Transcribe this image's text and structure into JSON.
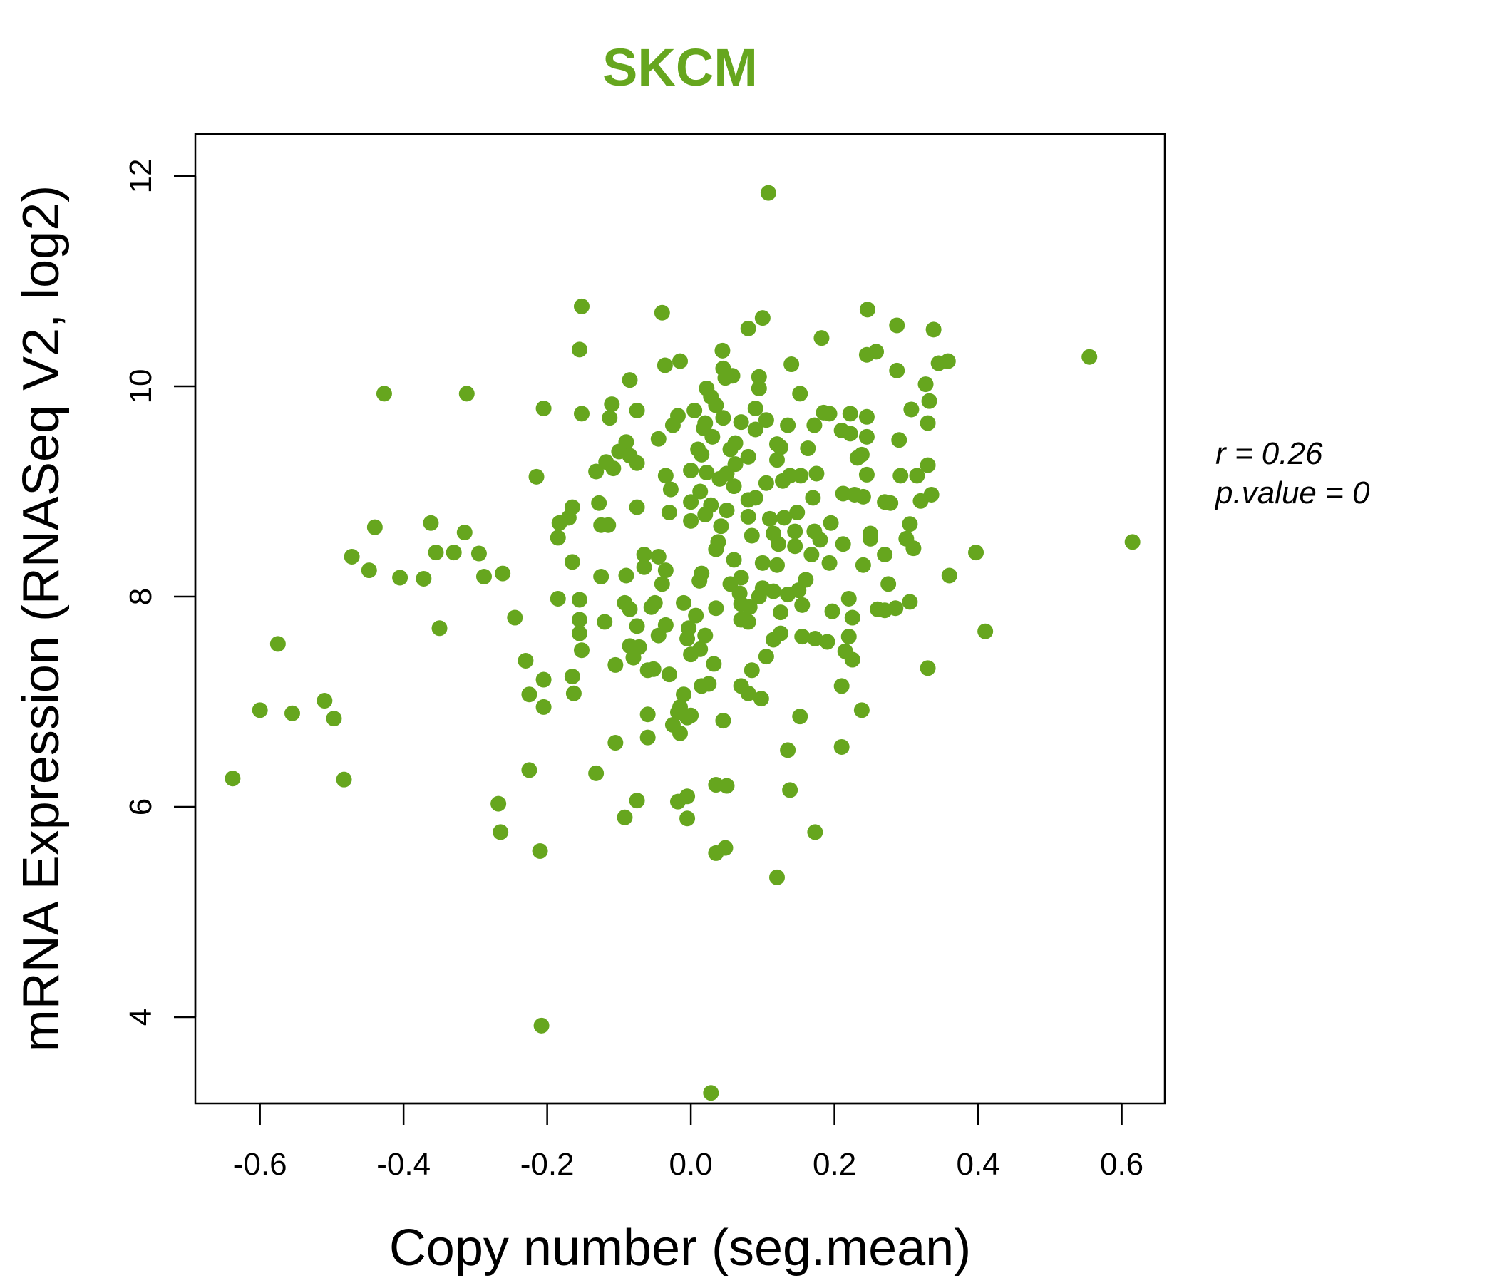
{
  "chart_data": {
    "type": "scatter",
    "title": "SKCM",
    "xlabel": "Copy number (seg.mean)",
    "ylabel": "mRNA Expression (RNASeq V2, log2)",
    "xlim": [
      -0.69,
      0.66
    ],
    "ylim": [
      3.18,
      12.4
    ],
    "x_ticks": [
      -0.6,
      -0.4,
      -0.2,
      0.0,
      0.2,
      0.4,
      0.6
    ],
    "x_tick_labels": [
      "-0.6",
      "-0.4",
      "-0.2",
      "0.0",
      "0.2",
      "0.4",
      "0.6"
    ],
    "y_ticks": [
      4,
      6,
      8,
      10,
      12
    ],
    "y_tick_labels": [
      "4",
      "6",
      "8",
      "10",
      "12"
    ],
    "grid": false,
    "color": "#66a61e",
    "stats": {
      "r_text": "r = 0.26",
      "p_text": "p.value = 0"
    },
    "points": [
      [
        0.108,
        11.84
      ],
      [
        -0.152,
        10.76
      ],
      [
        -0.04,
        10.7
      ],
      [
        0.246,
        10.73
      ],
      [
        0.1,
        10.65
      ],
      [
        0.08,
        10.55
      ],
      [
        0.287,
        10.58
      ],
      [
        0.338,
        10.54
      ],
      [
        0.182,
        10.46
      ],
      [
        -0.155,
        10.35
      ],
      [
        0.044,
        10.34
      ],
      [
        0.258,
        10.33
      ],
      [
        0.245,
        10.3
      ],
      [
        0.555,
        10.28
      ],
      [
        0.358,
        10.24
      ],
      [
        0.345,
        10.22
      ],
      [
        -0.015,
        10.24
      ],
      [
        -0.036,
        10.2
      ],
      [
        0.14,
        10.21
      ],
      [
        0.045,
        10.17
      ],
      [
        0.287,
        10.15
      ],
      [
        0.048,
        10.08
      ],
      [
        0.058,
        10.1
      ],
      [
        0.095,
        10.09
      ],
      [
        -0.085,
        10.06
      ],
      [
        0.327,
        10.02
      ],
      [
        0.022,
        9.98
      ],
      [
        0.095,
        9.98
      ],
      [
        0.152,
        9.93
      ],
      [
        -0.427,
        9.93
      ],
      [
        -0.312,
        9.93
      ],
      [
        0.028,
        9.9
      ],
      [
        0.332,
        9.86
      ],
      [
        -0.11,
        9.83
      ],
      [
        0.035,
        9.82
      ],
      [
        0.09,
        9.79
      ],
      [
        0.005,
        9.77
      ],
      [
        -0.205,
        9.79
      ],
      [
        -0.152,
        9.74
      ],
      [
        -0.075,
        9.77
      ],
      [
        0.185,
        9.75
      ],
      [
        0.193,
        9.74
      ],
      [
        0.307,
        9.78
      ],
      [
        0.222,
        9.74
      ],
      [
        0.245,
        9.71
      ],
      [
        -0.113,
        9.7
      ],
      [
        0.045,
        9.7
      ],
      [
        -0.018,
        9.72
      ],
      [
        0.105,
        9.68
      ],
      [
        0.07,
        9.66
      ],
      [
        0.02,
        9.65
      ],
      [
        0.33,
        9.65
      ],
      [
        -0.025,
        9.63
      ],
      [
        0.135,
        9.63
      ],
      [
        0.172,
        9.63
      ],
      [
        0.018,
        9.6
      ],
      [
        0.09,
        9.59
      ],
      [
        0.21,
        9.58
      ],
      [
        0.222,
        9.55
      ],
      [
        0.245,
        9.52
      ],
      [
        -0.045,
        9.5
      ],
      [
        0.03,
        9.52
      ],
      [
        -0.09,
        9.47
      ],
      [
        0.062,
        9.46
      ],
      [
        0.12,
        9.45
      ],
      [
        0.125,
        9.42
      ],
      [
        0.163,
        9.41
      ],
      [
        0.01,
        9.4
      ],
      [
        0.055,
        9.4
      ],
      [
        0.29,
        9.49
      ],
      [
        -0.1,
        9.38
      ],
      [
        -0.085,
        9.34
      ],
      [
        0.238,
        9.35
      ],
      [
        0.232,
        9.32
      ],
      [
        0.015,
        9.35
      ],
      [
        0.08,
        9.33
      ],
      [
        0.12,
        9.3
      ],
      [
        -0.118,
        9.28
      ],
      [
        -0.075,
        9.27
      ],
      [
        0.062,
        9.26
      ],
      [
        0.33,
        9.25
      ],
      [
        -0.108,
        9.22
      ],
      [
        0.0,
        9.2
      ],
      [
        -0.132,
        9.19
      ],
      [
        0.022,
        9.18
      ],
      [
        0.05,
        9.17
      ],
      [
        0.175,
        9.17
      ],
      [
        0.138,
        9.15
      ],
      [
        0.153,
        9.15
      ],
      [
        0.245,
        9.16
      ],
      [
        0.292,
        9.15
      ],
      [
        0.315,
        9.15
      ],
      [
        -0.215,
        9.14
      ],
      [
        -0.035,
        9.15
      ],
      [
        0.04,
        9.12
      ],
      [
        0.128,
        9.1
      ],
      [
        0.105,
        9.08
      ],
      [
        0.06,
        9.05
      ],
      [
        -0.028,
        9.02
      ],
      [
        0.013,
        9.0
      ],
      [
        0.212,
        8.98
      ],
      [
        0.228,
        8.97
      ],
      [
        0.24,
        8.95
      ],
      [
        0.335,
        8.97
      ],
      [
        0.09,
        8.94
      ],
      [
        0.17,
        8.94
      ],
      [
        0.08,
        8.92
      ],
      [
        0.32,
        8.91
      ],
      [
        0.0,
        8.9
      ],
      [
        0.27,
        8.9
      ],
      [
        0.278,
        8.89
      ],
      [
        -0.128,
        8.89
      ],
      [
        0.028,
        8.87
      ],
      [
        -0.165,
        8.85
      ],
      [
        -0.075,
        8.85
      ],
      [
        0.05,
        8.82
      ],
      [
        0.148,
        8.8
      ],
      [
        -0.03,
        8.8
      ],
      [
        0.02,
        8.78
      ],
      [
        0.08,
        8.76
      ],
      [
        -0.17,
        8.75
      ],
      [
        0.13,
        8.75
      ],
      [
        0.11,
        8.74
      ],
      [
        0.0,
        8.72
      ],
      [
        -0.183,
        8.7
      ],
      [
        0.195,
        8.7
      ],
      [
        -0.115,
        8.68
      ],
      [
        -0.125,
        8.68
      ],
      [
        0.305,
        8.69
      ],
      [
        0.042,
        8.67
      ],
      [
        -0.44,
        8.66
      ],
      [
        -0.362,
        8.7
      ],
      [
        -0.315,
        8.61
      ],
      [
        0.25,
        8.6
      ],
      [
        0.115,
        8.6
      ],
      [
        0.145,
        8.62
      ],
      [
        0.172,
        8.62
      ],
      [
        0.085,
        8.58
      ],
      [
        -0.185,
        8.56
      ],
      [
        0.3,
        8.55
      ],
      [
        0.25,
        8.55
      ],
      [
        0.18,
        8.54
      ],
      [
        0.038,
        8.52
      ],
      [
        0.615,
        8.52
      ],
      [
        0.212,
        8.5
      ],
      [
        0.122,
        8.5
      ],
      [
        0.145,
        8.48
      ],
      [
        0.31,
        8.46
      ],
      [
        0.035,
        8.45
      ],
      [
        -0.355,
        8.42
      ],
      [
        -0.33,
        8.42
      ],
      [
        -0.295,
        8.41
      ],
      [
        0.397,
        8.42
      ],
      [
        -0.065,
        8.4
      ],
      [
        -0.045,
        8.38
      ],
      [
        0.168,
        8.4
      ],
      [
        0.27,
        8.4
      ],
      [
        -0.472,
        8.38
      ],
      [
        0.06,
        8.35
      ],
      [
        -0.165,
        8.33
      ],
      [
        0.1,
        8.32
      ],
      [
        0.193,
        8.32
      ],
      [
        0.24,
        8.3
      ],
      [
        0.12,
        8.3
      ],
      [
        -0.065,
        8.28
      ],
      [
        -0.035,
        8.25
      ],
      [
        -0.448,
        8.25
      ],
      [
        -0.262,
        8.22
      ],
      [
        0.015,
        8.22
      ],
      [
        0.36,
        8.2
      ],
      [
        -0.288,
        8.19
      ],
      [
        -0.405,
        8.18
      ],
      [
        -0.372,
        8.17
      ],
      [
        -0.125,
        8.19
      ],
      [
        -0.09,
        8.2
      ],
      [
        0.07,
        8.18
      ],
      [
        0.16,
        8.16
      ],
      [
        0.012,
        8.15
      ],
      [
        -0.04,
        8.12
      ],
      [
        0.055,
        8.12
      ],
      [
        0.275,
        8.12
      ],
      [
        0.1,
        8.08
      ],
      [
        0.15,
        8.06
      ],
      [
        0.115,
        8.05
      ],
      [
        0.068,
        8.03
      ],
      [
        0.135,
        8.02
      ],
      [
        0.095,
        8.0
      ],
      [
        0.22,
        7.98
      ],
      [
        -0.185,
        7.98
      ],
      [
        -0.155,
        7.97
      ],
      [
        0.305,
        7.95
      ],
      [
        -0.092,
        7.94
      ],
      [
        -0.05,
        7.94
      ],
      [
        -0.01,
        7.94
      ],
      [
        0.07,
        7.93
      ],
      [
        0.155,
        7.92
      ],
      [
        0.082,
        7.9
      ],
      [
        0.035,
        7.89
      ],
      [
        -0.055,
        7.9
      ],
      [
        0.26,
        7.88
      ],
      [
        0.27,
        7.87
      ],
      [
        0.285,
        7.89
      ],
      [
        -0.085,
        7.88
      ],
      [
        0.197,
        7.86
      ],
      [
        0.125,
        7.85
      ],
      [
        -0.245,
        7.8
      ],
      [
        0.007,
        7.82
      ],
      [
        0.225,
        7.8
      ],
      [
        0.07,
        7.78
      ],
      [
        -0.155,
        7.78
      ],
      [
        -0.12,
        7.76
      ],
      [
        0.08,
        7.76
      ],
      [
        -0.075,
        7.72
      ],
      [
        -0.035,
        7.73
      ],
      [
        -0.35,
        7.7
      ],
      [
        -0.003,
        7.7
      ],
      [
        0.41,
        7.67
      ],
      [
        -0.155,
        7.65
      ],
      [
        0.125,
        7.65
      ],
      [
        -0.045,
        7.63
      ],
      [
        0.02,
        7.63
      ],
      [
        0.155,
        7.62
      ],
      [
        0.173,
        7.6
      ],
      [
        0.22,
        7.62
      ],
      [
        -0.005,
        7.6
      ],
      [
        0.115,
        7.59
      ],
      [
        0.19,
        7.57
      ],
      [
        -0.575,
        7.55
      ],
      [
        -0.085,
        7.53
      ],
      [
        -0.072,
        7.52
      ],
      [
        0.013,
        7.5
      ],
      [
        -0.152,
        7.49
      ],
      [
        0.215,
        7.48
      ],
      [
        0.0,
        7.45
      ],
      [
        0.105,
        7.43
      ],
      [
        -0.08,
        7.42
      ],
      [
        0.225,
        7.4
      ],
      [
        -0.23,
        7.39
      ],
      [
        -0.105,
        7.35
      ],
      [
        0.032,
        7.36
      ],
      [
        0.085,
        7.3
      ],
      [
        0.33,
        7.32
      ],
      [
        -0.052,
        7.31
      ],
      [
        -0.06,
        7.3
      ],
      [
        -0.03,
        7.26
      ],
      [
        -0.165,
        7.24
      ],
      [
        -0.205,
        7.21
      ],
      [
        0.025,
        7.17
      ],
      [
        0.015,
        7.15
      ],
      [
        0.07,
        7.15
      ],
      [
        0.21,
        7.15
      ],
      [
        0.08,
        7.08
      ],
      [
        -0.163,
        7.08
      ],
      [
        -0.225,
        7.07
      ],
      [
        -0.01,
        7.07
      ],
      [
        0.098,
        7.03
      ],
      [
        -0.51,
        7.01
      ],
      [
        -0.015,
        6.95
      ],
      [
        -0.205,
        6.95
      ],
      [
        -0.6,
        6.92
      ],
      [
        -0.555,
        6.89
      ],
      [
        0.238,
        6.92
      ],
      [
        -0.018,
        6.9
      ],
      [
        -0.06,
        6.88
      ],
      [
        0.0,
        6.87
      ],
      [
        -0.005,
        6.85
      ],
      [
        0.152,
        6.86
      ],
      [
        -0.497,
        6.84
      ],
      [
        0.045,
        6.82
      ],
      [
        -0.025,
        6.78
      ],
      [
        -0.015,
        6.7
      ],
      [
        -0.06,
        6.66
      ],
      [
        -0.105,
        6.61
      ],
      [
        0.21,
        6.57
      ],
      [
        0.135,
        6.54
      ],
      [
        -0.225,
        6.35
      ],
      [
        -0.132,
        6.32
      ],
      [
        -0.638,
        6.27
      ],
      [
        -0.483,
        6.26
      ],
      [
        0.035,
        6.21
      ],
      [
        0.05,
        6.2
      ],
      [
        0.138,
        6.16
      ],
      [
        -0.005,
        6.1
      ],
      [
        -0.075,
        6.06
      ],
      [
        -0.018,
        6.05
      ],
      [
        -0.268,
        6.03
      ],
      [
        -0.092,
        5.9
      ],
      [
        -0.005,
        5.89
      ],
      [
        -0.265,
        5.76
      ],
      [
        0.173,
        5.76
      ],
      [
        0.048,
        5.61
      ],
      [
        0.035,
        5.56
      ],
      [
        -0.21,
        5.58
      ],
      [
        0.12,
        5.33
      ],
      [
        -0.208,
        3.92
      ],
      [
        0.028,
        3.28
      ]
    ]
  }
}
